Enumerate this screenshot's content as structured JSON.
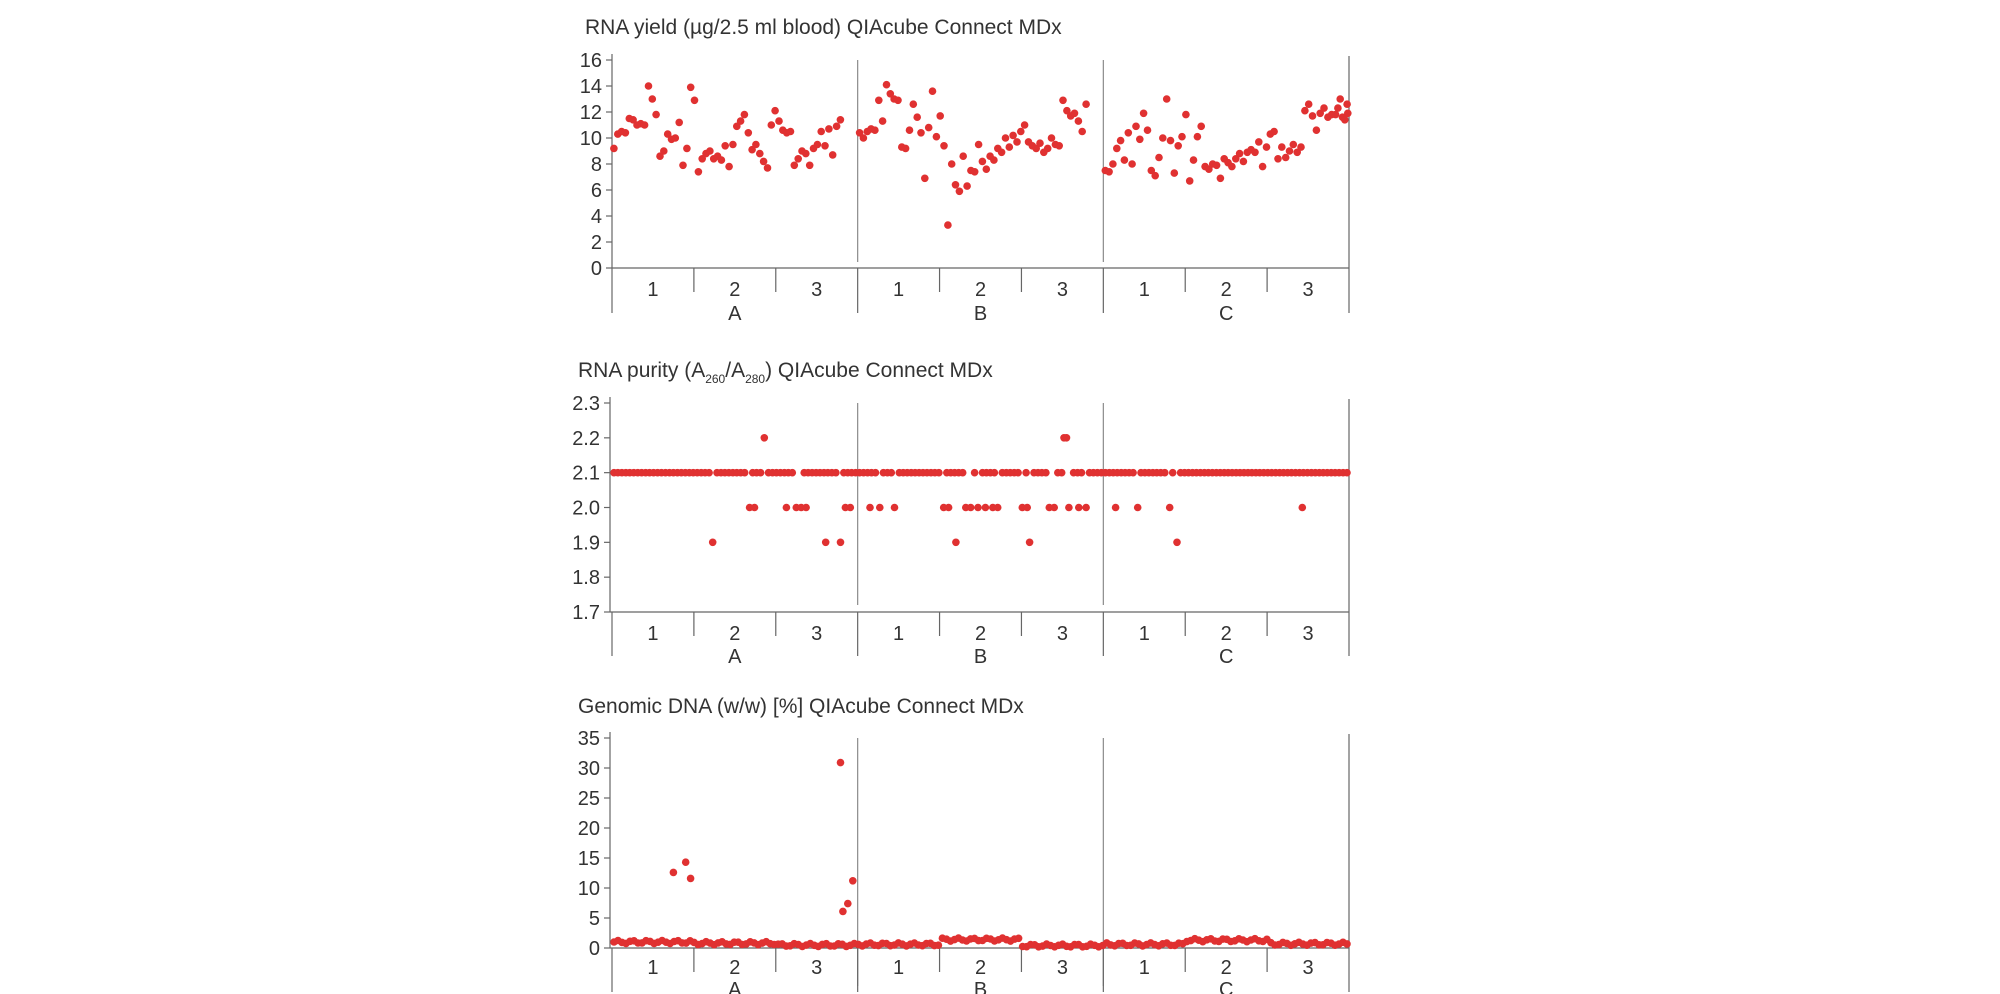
{
  "colors": {
    "point": "#e03131",
    "axis": "#666666",
    "text": "#333333"
  },
  "groups": [
    "A",
    "B",
    "C"
  ],
  "subgroups": [
    "1",
    "2",
    "3"
  ],
  "chart_data": [
    {
      "type": "scatter",
      "title": "RNA yield (µg/2.5 ml blood) QIAcube Connect MDx",
      "ylim": [
        0,
        16
      ],
      "yticks": [
        "0",
        "2",
        "4",
        "6",
        "8",
        "10",
        "12",
        "14",
        "16"
      ],
      "n_per_group": 60,
      "values": [
        [
          9.2,
          10.3,
          10.5,
          10.4,
          11.5,
          11.4,
          11.0,
          11.1,
          11.0,
          14.0,
          13.0,
          11.8,
          8.6,
          9.0,
          10.3,
          9.9,
          10.0,
          11.2,
          7.9,
          9.2,
          13.9,
          12.9,
          7.4,
          8.4,
          8.8,
          9.0,
          8.4,
          8.6,
          8.3,
          9.4,
          7.8,
          9.5,
          10.9,
          11.3,
          11.8,
          10.4,
          9.1,
          9.5,
          8.8,
          8.2,
          7.7,
          11.0,
          12.1,
          11.3,
          10.6,
          10.4,
          10.5,
          7.9,
          8.4,
          9.0,
          8.8,
          7.9,
          9.2,
          9.5,
          10.5,
          9.4,
          10.7,
          8.7,
          10.9,
          11.4
        ],
        [
          10.4,
          10.0,
          10.5,
          10.7,
          10.6,
          12.9,
          11.3,
          14.1,
          13.4,
          13.0,
          12.9,
          9.3,
          9.2,
          10.6,
          12.6,
          11.6,
          10.4,
          6.9,
          10.8,
          13.6,
          10.1,
          11.7,
          9.4,
          3.3,
          8.0,
          6.4,
          5.9,
          8.6,
          6.3,
          7.5,
          7.4,
          9.5,
          8.2,
          7.6,
          8.6,
          8.3,
          9.2,
          8.9,
          10.0,
          9.3,
          10.2,
          9.7,
          10.5,
          11.0,
          9.7,
          9.4,
          9.2,
          9.6,
          8.9,
          9.2,
          10.0,
          9.5,
          9.4,
          12.9,
          12.1,
          11.7,
          11.9,
          11.3,
          10.5,
          12.6
        ],
        [
          7.5,
          7.4,
          8.0,
          9.2,
          9.8,
          8.3,
          10.4,
          8.0,
          10.9,
          9.9,
          11.9,
          10.6,
          7.5,
          7.1,
          8.5,
          10.0,
          13.0,
          9.8,
          7.3,
          9.4,
          10.1,
          11.8,
          6.7,
          8.3,
          10.1,
          10.9,
          7.8,
          7.6,
          8.0,
          7.9,
          6.9,
          8.4,
          8.1,
          7.8,
          8.4,
          8.8,
          8.2,
          8.9,
          9.1,
          8.9,
          9.7,
          7.8,
          9.3,
          10.3,
          10.5,
          8.4,
          9.3,
          8.5,
          9.0,
          9.5,
          8.9,
          9.3,
          12.1,
          12.6,
          11.7,
          10.6,
          11.9,
          12.3,
          11.6,
          11.8
        ]
      ],
      "extra_tail": [
        11.8,
        12.3,
        13.0,
        11.6,
        11.4,
        12.6,
        11.9
      ]
    },
    {
      "type": "scatter",
      "title": "RNA purity (A",
      "title_sub1": "260",
      "title_mid": "/A",
      "title_sub2": "280",
      "title_end": ") QIAcube Connect MDx",
      "ylim": [
        1.7,
        2.3
      ],
      "yticks": [
        "1.7",
        "1.8",
        "1.9",
        "2.0",
        "2.1",
        "2.2",
        "2.3"
      ],
      "baseline": 2.1,
      "baseline_points": 186,
      "outliers": [
        {
          "pos": 0.41,
          "y": 1.9
        },
        {
          "pos": 0.62,
          "y": 2.2
        },
        {
          "pos": 0.56,
          "y": 2.0
        },
        {
          "pos": 0.58,
          "y": 2.0
        },
        {
          "pos": 0.71,
          "y": 2.0
        },
        {
          "pos": 0.75,
          "y": 2.0
        },
        {
          "pos": 0.77,
          "y": 2.0
        },
        {
          "pos": 0.79,
          "y": 2.0
        },
        {
          "pos": 0.87,
          "y": 1.9
        },
        {
          "pos": 0.93,
          "y": 1.9
        },
        {
          "pos": 0.95,
          "y": 2.0
        },
        {
          "pos": 0.97,
          "y": 2.0
        },
        {
          "pos": 1.05,
          "y": 2.0
        },
        {
          "pos": 1.09,
          "y": 2.0
        },
        {
          "pos": 1.15,
          "y": 2.0
        },
        {
          "pos": 1.35,
          "y": 2.0
        },
        {
          "pos": 1.37,
          "y": 2.0
        },
        {
          "pos": 1.4,
          "y": 1.9
        },
        {
          "pos": 1.44,
          "y": 2.0
        },
        {
          "pos": 1.46,
          "y": 2.0
        },
        {
          "pos": 1.49,
          "y": 2.0
        },
        {
          "pos": 1.52,
          "y": 2.0
        },
        {
          "pos": 1.55,
          "y": 2.0
        },
        {
          "pos": 1.57,
          "y": 2.0
        },
        {
          "pos": 1.67,
          "y": 2.0
        },
        {
          "pos": 1.69,
          "y": 2.0
        },
        {
          "pos": 1.7,
          "y": 1.9
        },
        {
          "pos": 1.78,
          "y": 2.0
        },
        {
          "pos": 1.8,
          "y": 2.0
        },
        {
          "pos": 1.84,
          "y": 2.2
        },
        {
          "pos": 1.85,
          "y": 2.2
        },
        {
          "pos": 1.86,
          "y": 2.0
        },
        {
          "pos": 1.9,
          "y": 2.0
        },
        {
          "pos": 1.93,
          "y": 2.0
        },
        {
          "pos": 2.05,
          "y": 2.0
        },
        {
          "pos": 2.14,
          "y": 2.0
        },
        {
          "pos": 2.27,
          "y": 2.0
        },
        {
          "pos": 2.3,
          "y": 1.9
        },
        {
          "pos": 2.81,
          "y": 2.0
        }
      ]
    },
    {
      "type": "scatter",
      "title": "Genomic DNA (w/w) [%] QIAcube Connect MDx",
      "ylim": [
        0,
        35
      ],
      "yticks": [
        "0",
        "5",
        "10",
        "15",
        "20",
        "25",
        "30",
        "35"
      ],
      "baseline_points": 184,
      "baseline_levels": [
        1.0,
        0.8,
        0.5,
        0.6,
        1.4,
        0.4,
        0.6,
        1.3,
        0.7
      ],
      "outliers": [
        {
          "pos": 0.25,
          "y": 12.6
        },
        {
          "pos": 0.3,
          "y": 14.3
        },
        {
          "pos": 0.32,
          "y": 11.6
        },
        {
          "pos": 0.93,
          "y": 30.9
        },
        {
          "pos": 0.94,
          "y": 6.1
        },
        {
          "pos": 0.96,
          "y": 7.4
        },
        {
          "pos": 0.98,
          "y": 11.2
        }
      ]
    }
  ]
}
